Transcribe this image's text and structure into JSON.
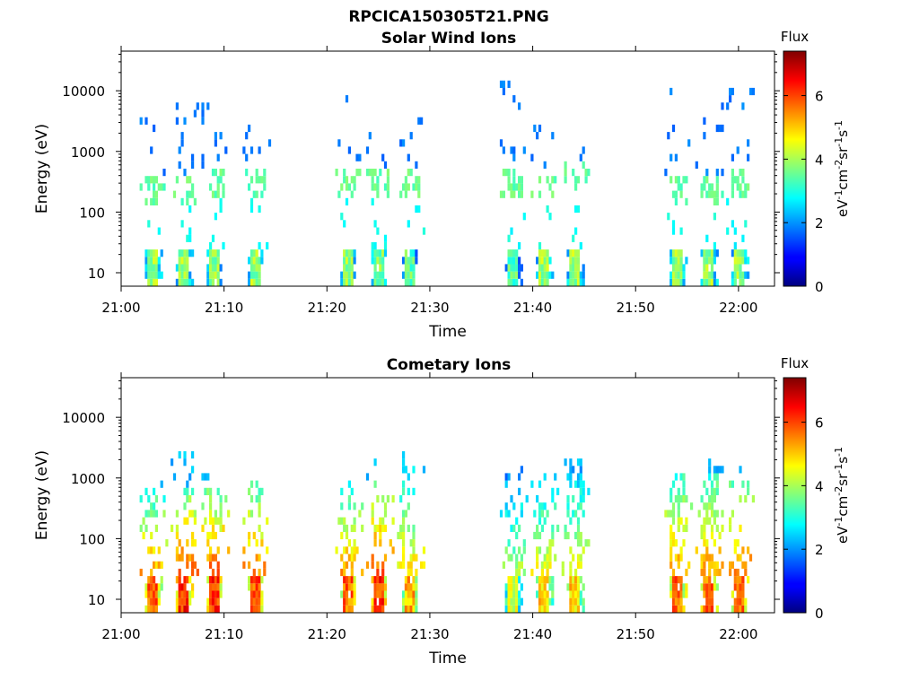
{
  "figure_title": "RPCICA150305T21.PNG",
  "chart_data": [
    {
      "type": "heatmap",
      "title": "Solar Wind Ions",
      "xlabel": "Time",
      "ylabel": "Energy (eV)",
      "x_ticks": [
        "21:00",
        "21:10",
        "21:20",
        "21:30",
        "21:40",
        "21:50",
        "22:00"
      ],
      "y_ticks": [
        "10",
        "100",
        "1000",
        "10000"
      ],
      "y_scale": "log",
      "y_range_eV": [
        6,
        45000
      ],
      "x_range_minutes": [
        0,
        63.5
      ],
      "colorbar": {
        "title": "Flux",
        "label": "eV-1cm-2sr-1s-1",
        "ticks": [
          "0",
          "2",
          "4",
          "6"
        ],
        "range": [
          0,
          7.4
        ]
      },
      "bursts": [
        {
          "time": "21:03",
          "low_energy_flux": 4.5,
          "peak_energy_eV": 250,
          "high_energy_eV": 8000
        },
        {
          "time": "21:06",
          "low_energy_flux": 4.5,
          "peak_energy_eV": 250,
          "high_energy_eV": 8000
        },
        {
          "time": "21:09",
          "low_energy_flux": 4.5,
          "peak_energy_eV": 300,
          "high_energy_eV": 9000
        },
        {
          "time": "21:13",
          "low_energy_flux": 4.5,
          "peak_energy_eV": 300,
          "high_energy_eV": 5000
        },
        {
          "time": "21:22",
          "low_energy_flux": 4.5,
          "peak_energy_eV": 300,
          "high_energy_eV": 8000
        },
        {
          "time": "21:25",
          "low_energy_flux": 4.3,
          "peak_energy_eV": 300,
          "high_energy_eV": 4000
        },
        {
          "time": "21:28",
          "low_energy_flux": 4.0,
          "peak_energy_eV": 350,
          "high_energy_eV": 4000
        },
        {
          "time": "21:38",
          "low_energy_flux": 4.0,
          "peak_energy_eV": 300,
          "high_energy_eV": 13000
        },
        {
          "time": "21:41",
          "low_energy_flux": 4.5,
          "peak_energy_eV": 350,
          "high_energy_eV": 3000
        },
        {
          "time": "21:44",
          "low_energy_flux": 4.5,
          "peak_energy_eV": 400,
          "high_energy_eV": 2000
        },
        {
          "time": "21:54",
          "low_energy_flux": 4.5,
          "peak_energy_eV": 250,
          "high_energy_eV": 10000
        },
        {
          "time": "21:57",
          "low_energy_flux": 4.5,
          "peak_energy_eV": 250,
          "high_energy_eV": 10000
        },
        {
          "time": "22:00",
          "low_energy_flux": 4.5,
          "peak_energy_eV": 300,
          "high_energy_eV": 10000
        }
      ]
    },
    {
      "type": "heatmap",
      "title": "Cometary Ions",
      "xlabel": "Time",
      "ylabel": "Energy (eV)",
      "x_ticks": [
        "21:00",
        "21:10",
        "21:20",
        "21:30",
        "21:40",
        "21:50",
        "22:00"
      ],
      "y_ticks": [
        "10",
        "100",
        "1000",
        "10000"
      ],
      "y_scale": "log",
      "y_range_eV": [
        6,
        45000
      ],
      "x_range_minutes": [
        0,
        63.5
      ],
      "colorbar": {
        "title": "Flux",
        "label": "eV-1cm-2sr-1s-1",
        "ticks": [
          "0",
          "2",
          "4",
          "6"
        ],
        "range": [
          0,
          7.4
        ]
      },
      "bursts": [
        {
          "time": "21:03",
          "low_energy_flux": 6.3,
          "peak_energy_eV": 400,
          "high_energy_eV": 800
        },
        {
          "time": "21:06",
          "low_energy_flux": 6.8,
          "peak_energy_eV": 400,
          "high_energy_eV": 3000
        },
        {
          "time": "21:09",
          "low_energy_flux": 6.7,
          "peak_energy_eV": 500,
          "high_energy_eV": 1200
        },
        {
          "time": "21:13",
          "low_energy_flux": 6.5,
          "peak_energy_eV": 500,
          "high_energy_eV": 800
        },
        {
          "time": "21:22",
          "low_energy_flux": 6.3,
          "peak_energy_eV": 500,
          "high_energy_eV": 600
        },
        {
          "time": "21:25",
          "low_energy_flux": 6.7,
          "peak_energy_eV": 600,
          "high_energy_eV": 2000
        },
        {
          "time": "21:28",
          "low_energy_flux": 5.8,
          "peak_energy_eV": 900,
          "high_energy_eV": 2500
        },
        {
          "time": "21:38",
          "low_energy_flux": 5.0,
          "peak_energy_eV": 1000,
          "high_energy_eV": 1500
        },
        {
          "time": "21:41",
          "low_energy_flux": 5.5,
          "peak_energy_eV": 700,
          "high_energy_eV": 1200
        },
        {
          "time": "21:44",
          "low_energy_flux": 5.5,
          "peak_energy_eV": 1000,
          "high_energy_eV": 2000
        },
        {
          "time": "21:54",
          "low_energy_flux": 6.3,
          "peak_energy_eV": 800,
          "high_energy_eV": 1000
        },
        {
          "time": "21:57",
          "low_energy_flux": 6.3,
          "peak_energy_eV": 800,
          "high_energy_eV": 2000
        },
        {
          "time": "22:00",
          "low_energy_flux": 6.5,
          "peak_energy_eV": 600,
          "high_energy_eV": 1500
        }
      ]
    }
  ]
}
